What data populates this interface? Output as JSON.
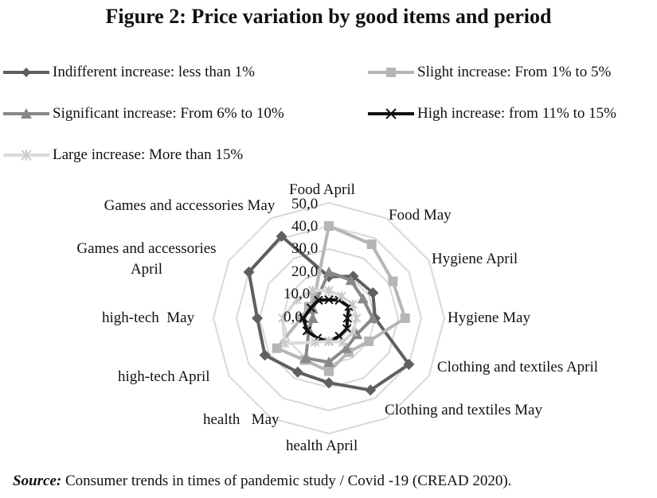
{
  "chart_data": {
    "type": "radar",
    "title": "Figure 2: Price variation by good items and period",
    "categories": [
      "Food April",
      "Food  May",
      "Hygiene April",
      "Hygiene  May",
      "Clothing and textiles April",
      "Clothing and textiles May",
      "health  April",
      "health   May",
      "high-tech April",
      "high-tech  May",
      "Games and accessories April",
      "Games and accessories May"
    ],
    "ticks": [
      "0,0",
      "10,0",
      "20,0",
      "30,0",
      "40,0",
      "50,0"
    ],
    "rlim": [
      0,
      50
    ],
    "legend_position": "top",
    "series": [
      {
        "name": "Indifferent increase: less than 1%",
        "color": "#5f5f5f",
        "marker": "diamond",
        "values": [
          18,
          21,
          22,
          20,
          40,
          36,
          28,
          27,
          32,
          31,
          40,
          41
        ]
      },
      {
        "name": "Slight increase: From 1% to 5%",
        "color": "#b5b5b5",
        "marker": "square",
        "values": [
          40,
          37,
          32,
          33,
          20,
          17,
          23,
          21,
          26,
          12,
          10,
          12
        ]
      },
      {
        "name": "Significant increase: From 6% to 10%",
        "color": "#888888",
        "marker": "triangle",
        "values": [
          20,
          19,
          17,
          19,
          14,
          15,
          19,
          20,
          10,
          7,
          8,
          10
        ]
      },
      {
        "name": "High increase: from 11% to 15%",
        "color": "#111111",
        "marker": "x",
        "values": [
          8,
          9,
          10,
          8,
          9,
          9,
          10,
          10,
          11,
          11,
          9,
          9
        ]
      },
      {
        "name": "Large increase: More than 15%",
        "color": "#dadada",
        "marker": "star",
        "values": [
          12,
          11,
          12,
          12,
          12,
          12,
          10,
          12,
          22,
          20,
          16,
          14
        ]
      }
    ]
  },
  "source": {
    "label": "Source:",
    "text": " Consumer trends in times of pandemic study / Covid -19 (CREAD 2020)."
  }
}
